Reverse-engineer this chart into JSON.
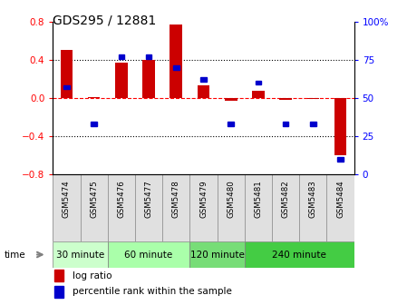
{
  "title": "GDS295 / 12881",
  "samples": [
    "GSM5474",
    "GSM5475",
    "GSM5476",
    "GSM5477",
    "GSM5478",
    "GSM5479",
    "GSM5480",
    "GSM5481",
    "GSM5482",
    "GSM5483",
    "GSM5484"
  ],
  "log_ratio": [
    0.5,
    0.01,
    0.37,
    0.4,
    0.77,
    0.13,
    -0.03,
    0.07,
    -0.02,
    -0.01,
    -0.6
  ],
  "percentile": [
    57,
    33,
    77,
    77,
    70,
    62,
    33,
    60,
    33,
    33,
    10
  ],
  "groups": [
    {
      "label": "30 minute",
      "start": 0,
      "end": 1,
      "color": "#ccffcc"
    },
    {
      "label": "60 minute",
      "start": 2,
      "end": 4,
      "color": "#aaffaa"
    },
    {
      "label": "120 minute",
      "start": 5,
      "end": 6,
      "color": "#77dd77"
    },
    {
      "label": "240 minute",
      "start": 7,
      "end": 10,
      "color": "#44cc44"
    }
  ],
  "bar_color": "#cc0000",
  "point_color": "#0000cc",
  "ylim_left": [
    -0.8,
    0.8
  ],
  "ylim_right": [
    0,
    100
  ],
  "yticks_left": [
    -0.8,
    -0.4,
    0.0,
    0.4,
    0.8
  ],
  "yticks_right": [
    0,
    25,
    50,
    75,
    100
  ],
  "hlines_dotted": [
    0.4,
    -0.4
  ],
  "hline_dashed": 0.0,
  "xlabel_time": "time",
  "legend_log": "log ratio",
  "legend_pct": "percentile rank within the sample",
  "background_color": "#ffffff"
}
